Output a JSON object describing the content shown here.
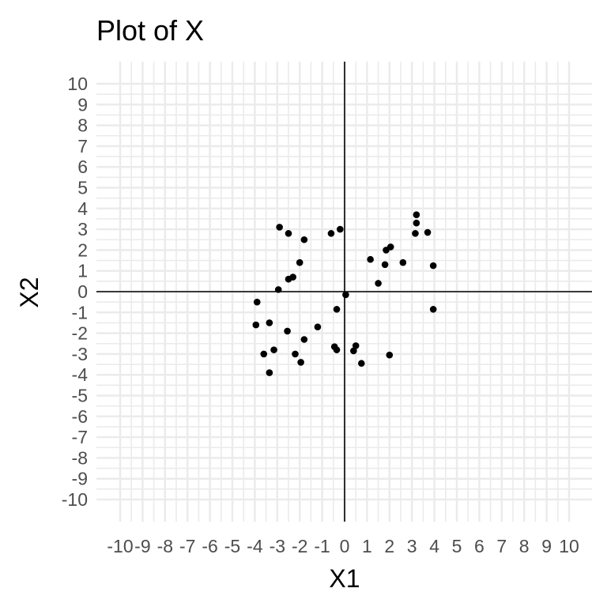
{
  "chart_data": {
    "type": "scatter",
    "title": "Plot of X",
    "xlabel": "X1",
    "ylabel": "X2",
    "xlim": [
      -10,
      10
    ],
    "ylim": [
      -10,
      10
    ],
    "grid": true,
    "x_ticks": [
      "-10",
      "-9",
      "-8",
      "-7",
      "-6",
      "-5",
      "-4",
      "-3",
      "-2",
      "-1",
      "0",
      "1",
      "2",
      "3",
      "4",
      "5",
      "6",
      "7",
      "8",
      "9",
      "10"
    ],
    "y_ticks": [
      "-10",
      "-9",
      "-8",
      "-7",
      "-6",
      "-5",
      "-4",
      "-3",
      "-2",
      "-1",
      "0",
      "1",
      "2",
      "3",
      "4",
      "5",
      "6",
      "7",
      "8",
      "9",
      "10"
    ],
    "points": [
      {
        "x": -2.9,
        "y": 3.1
      },
      {
        "x": -2.5,
        "y": 2.8
      },
      {
        "x": -1.8,
        "y": 2.5
      },
      {
        "x": -0.6,
        "y": 2.8
      },
      {
        "x": -0.2,
        "y": 3.0
      },
      {
        "x": -2.0,
        "y": 1.4
      },
      {
        "x": -2.5,
        "y": 0.6
      },
      {
        "x": -2.3,
        "y": 0.7
      },
      {
        "x": -2.95,
        "y": 0.1
      },
      {
        "x": -3.9,
        "y": -0.5
      },
      {
        "x": -3.95,
        "y": -1.6
      },
      {
        "x": -3.35,
        "y": -1.5
      },
      {
        "x": -2.55,
        "y": -1.9
      },
      {
        "x": -1.2,
        "y": -1.7
      },
      {
        "x": -1.8,
        "y": -2.3
      },
      {
        "x": -3.15,
        "y": -2.8
      },
      {
        "x": -3.6,
        "y": -3.0
      },
      {
        "x": -2.2,
        "y": -3.0
      },
      {
        "x": -1.95,
        "y": -3.4
      },
      {
        "x": -3.35,
        "y": -3.9
      },
      {
        "x": -0.35,
        "y": -0.85
      },
      {
        "x": 0.05,
        "y": -0.15
      },
      {
        "x": -0.45,
        "y": -2.65
      },
      {
        "x": -0.35,
        "y": -2.8
      },
      {
        "x": 0.5,
        "y": -2.6
      },
      {
        "x": 0.4,
        "y": -2.85
      },
      {
        "x": 0.75,
        "y": -3.45
      },
      {
        "x": 2.0,
        "y": -3.05
      },
      {
        "x": 1.15,
        "y": 1.55
      },
      {
        "x": 1.5,
        "y": 0.4
      },
      {
        "x": 1.8,
        "y": 1.3
      },
      {
        "x": 1.85,
        "y": 2.0
      },
      {
        "x": 2.05,
        "y": 2.15
      },
      {
        "x": 2.6,
        "y": 1.4
      },
      {
        "x": 3.2,
        "y": 3.7
      },
      {
        "x": 3.2,
        "y": 3.3
      },
      {
        "x": 3.15,
        "y": 2.8
      },
      {
        "x": 3.7,
        "y": 2.85
      },
      {
        "x": 3.95,
        "y": 1.25
      },
      {
        "x": 3.95,
        "y": -0.85
      }
    ]
  }
}
